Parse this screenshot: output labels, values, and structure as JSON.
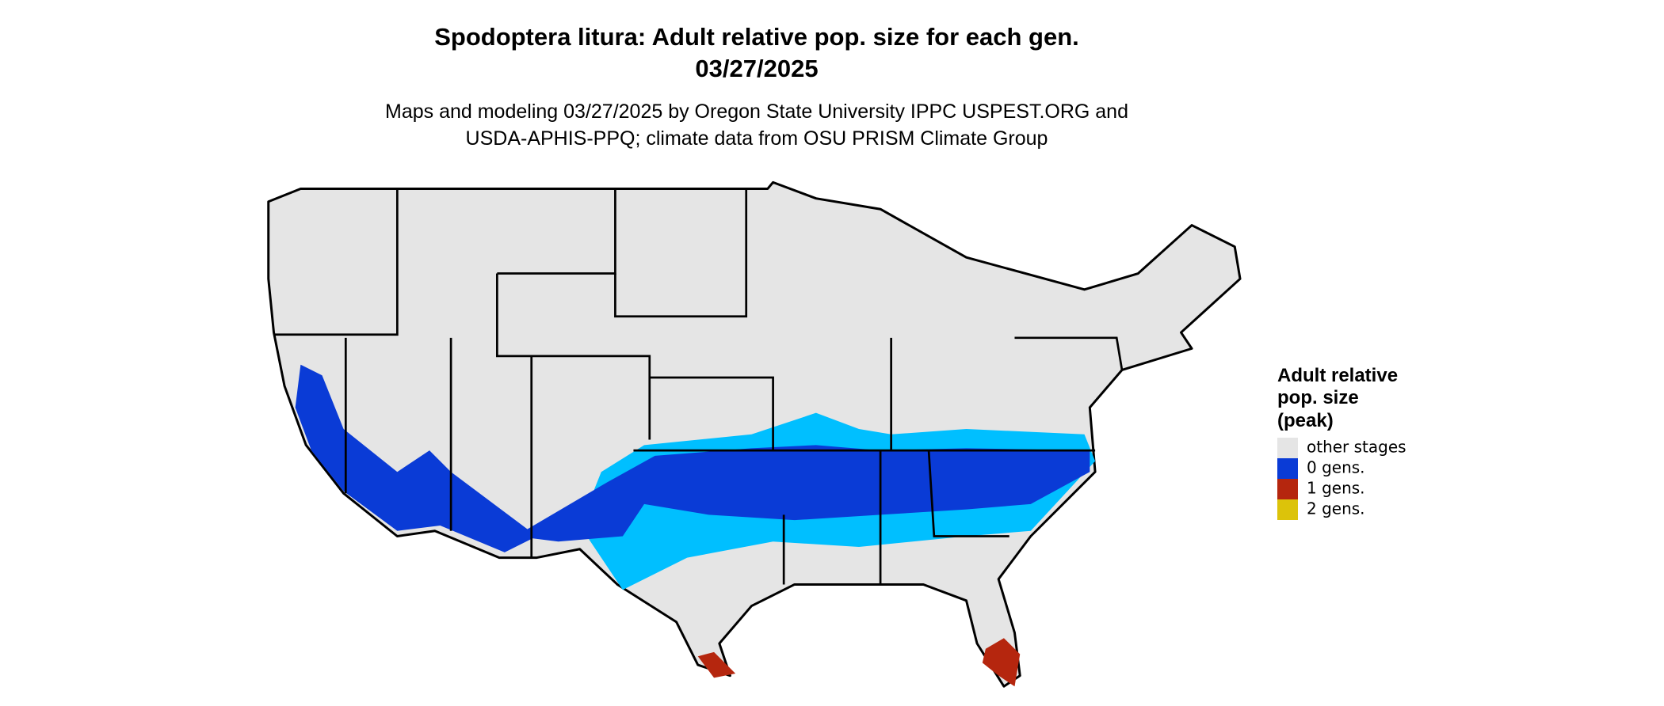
{
  "header": {
    "title": [
      "Spodoptera litura: Adult relative pop. size for each gen.",
      "03/27/2025"
    ],
    "subtitle": [
      "Maps and modeling 03/27/2025 by Oregon State University IPPC USPEST.ORG and",
      "USDA-APHIS-PPQ; climate data from OSU PRISM Climate Group"
    ]
  },
  "legend": {
    "title": [
      "Adult relative",
      "pop. size",
      "(peak)"
    ],
    "items": [
      {
        "label": "other stages",
        "color": "#e5e5e5"
      },
      {
        "label": "0 gens.",
        "color": "#0a3bd6"
      },
      {
        "label": "1 gens.",
        "color": "#b5260e"
      },
      {
        "label": "2 gens.",
        "color": "#dcc30a"
      }
    ]
  }
}
